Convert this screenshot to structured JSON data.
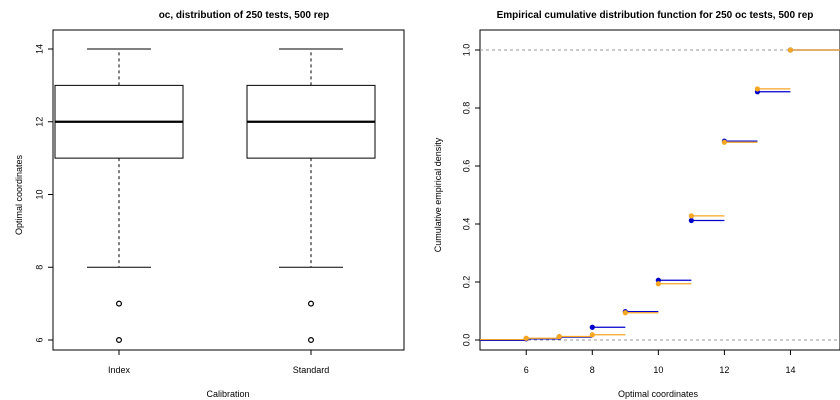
{
  "chart_data": [
    {
      "type": "boxplot",
      "title": "oc, distribution of 250 tests, 500 rep",
      "xlabel": "Calibration",
      "ylabel": "Optimal coordinates",
      "categories": [
        "Index",
        "Standard"
      ],
      "ylim": [
        6,
        14
      ],
      "yticks": [
        "6",
        "8",
        "10",
        "12",
        "14"
      ],
      "boxes": [
        {
          "name": "Index",
          "whisker_low": 8,
          "q1": 11,
          "median": 12,
          "q3": 13,
          "whisker_high": 14,
          "outliers": [
            7,
            6
          ]
        },
        {
          "name": "Standard",
          "whisker_low": 8,
          "q1": 11,
          "median": 12,
          "q3": 13,
          "whisker_high": 14,
          "outliers": [
            7,
            6
          ]
        }
      ]
    },
    {
      "type": "step",
      "title": "Empirical cumulative distribution function for 250 oc tests, 500 rep",
      "xlabel": "Optimal coordinates",
      "ylabel": "Cumulative empirical density",
      "xlim": [
        4.6,
        15.5
      ],
      "ylim": [
        0,
        1
      ],
      "xticks": [
        "6",
        "8",
        "10",
        "12",
        "14"
      ],
      "yticks": [
        "0.0",
        "0.2",
        "0.4",
        "0.6",
        "0.8",
        "1.0"
      ],
      "grid": false,
      "series": [
        {
          "color": "#0000cc",
          "x": [
            6,
            7,
            8,
            9,
            10,
            11,
            12,
            13,
            14
          ],
          "y": [
            0.004,
            0.01,
            0.044,
            0.098,
            0.206,
            0.412,
            0.686,
            0.856,
            1.0
          ]
        },
        {
          "color": "#f5a623",
          "x": [
            6,
            7,
            8,
            9,
            10,
            11,
            12,
            13,
            14
          ],
          "y": [
            0.006,
            0.012,
            0.018,
            0.094,
            0.194,
            0.428,
            0.682,
            0.866,
            1.0
          ]
        }
      ]
    }
  ]
}
